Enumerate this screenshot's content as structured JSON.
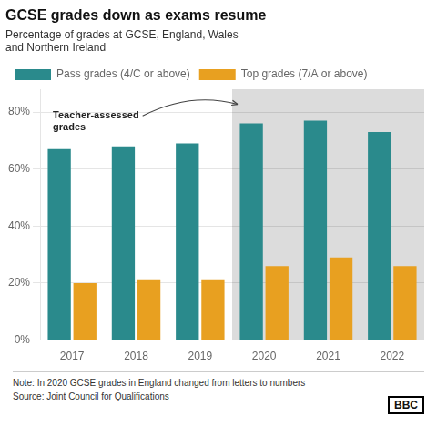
{
  "chart_data": {
    "type": "bar",
    "title": "GCSE grades down as exams resume",
    "subtitle": "Percentage of grades at GCSE, England, Wales\nand Northern Ireland",
    "categories": [
      "2017",
      "2018",
      "2019",
      "2020",
      "2021",
      "2022"
    ],
    "series": [
      {
        "name": "Pass grades (4/C or above)",
        "color": "#2a8a8c",
        "values": [
          67,
          68,
          69,
          76,
          77,
          73
        ]
      },
      {
        "name": "Top grades (7/A or above)",
        "color": "#e8a020",
        "values": [
          20,
          21,
          21,
          26,
          29,
          26
        ]
      }
    ],
    "ylim": [
      0,
      88
    ],
    "yticks": [
      {
        "value": 0,
        "label": "0%"
      },
      {
        "value": 20,
        "label": "20%"
      },
      {
        "value": 40,
        "label": "40%"
      },
      {
        "value": 60,
        "label": "60%"
      },
      {
        "value": 80,
        "label": "80%"
      }
    ],
    "grid": true,
    "legend": "top",
    "annotation": {
      "text": "Teacher-assessed\ngrades",
      "span": [
        "2020",
        "2022"
      ]
    },
    "note": "Note: In 2020 GCSE grades in England changed from letters to numbers",
    "source": "Source: Joint Council for Qualifications",
    "credit": "BBC"
  }
}
